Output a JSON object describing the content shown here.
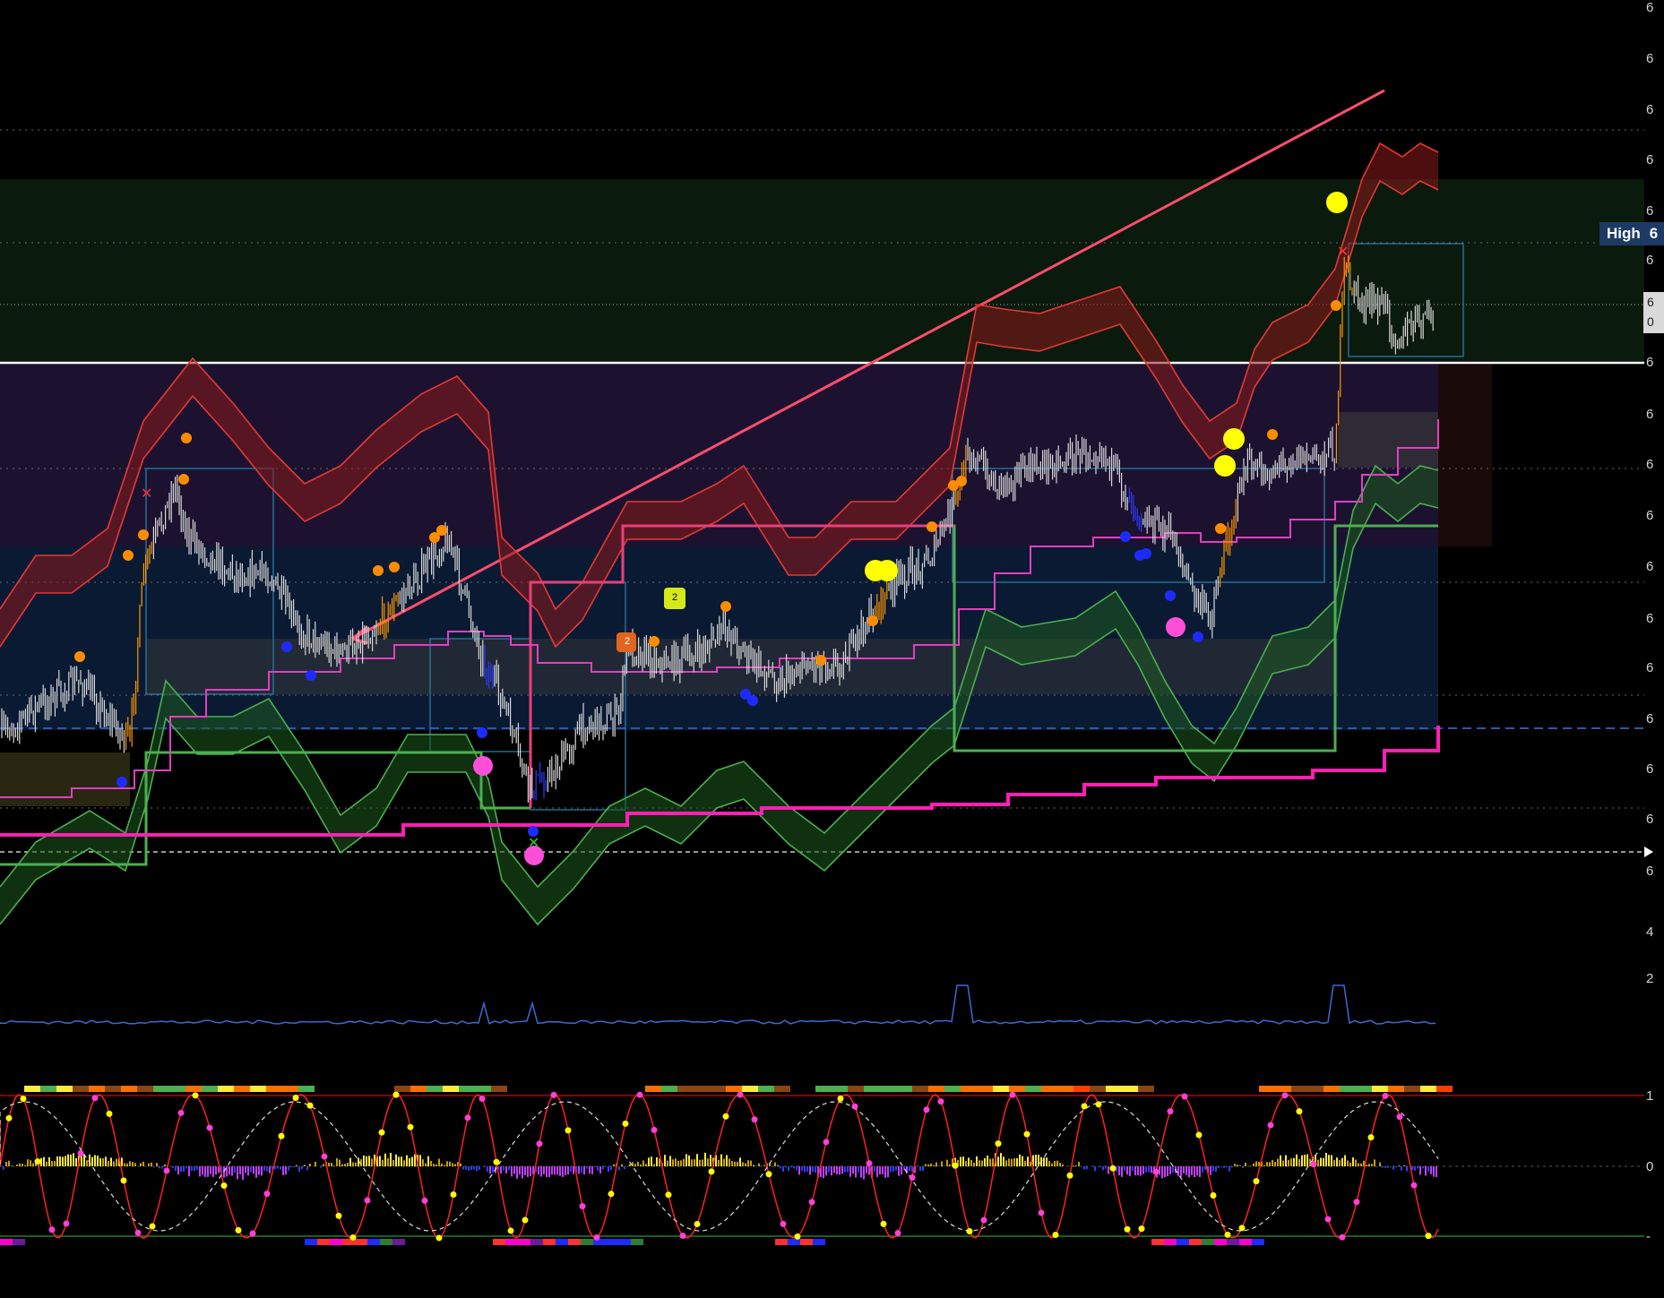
{
  "price_axis": {
    "labels": [
      "6",
      "6",
      "6",
      "6",
      "6",
      "6",
      "6",
      "6",
      "6",
      "6",
      "6",
      "6",
      "6",
      "6",
      "6",
      "6",
      "6",
      "6",
      "4",
      "2",
      "1",
      "0",
      "-"
    ]
  },
  "high_badge": {
    "label": "High",
    "value": "6"
  },
  "last_badge": {
    "line1": "6",
    "line2": "0"
  },
  "colors": {
    "background": "#000000",
    "bull_band": "#2e7d32",
    "bear_band": "#c62828",
    "trend_line": "#ff4d6d",
    "support_step": "#ff1fb4",
    "ma_line": "#e040c0",
    "buy_dot": "#ff8c00",
    "sell_dot": "#1e2bff",
    "signal_yellow": "#ffff00",
    "magenta_dot": "#ff4fd8"
  },
  "chart_data": {
    "type": "line",
    "price_series_label": "",
    "markers": {
      "label_2_a": "2",
      "label_2_b": "2"
    },
    "oscillator": {
      "levels": [
        "1",
        "0",
        "-"
      ]
    }
  }
}
